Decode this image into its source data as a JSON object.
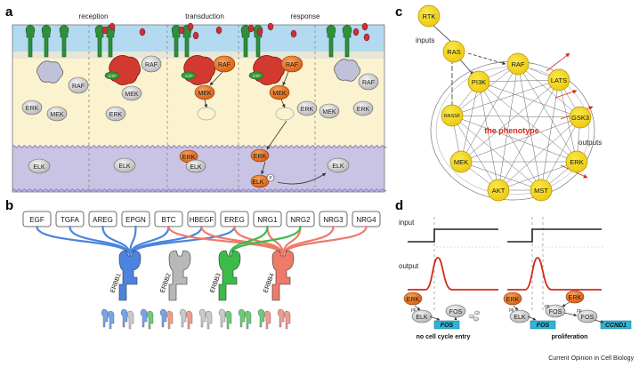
{
  "panels": {
    "a": "a",
    "b": "b",
    "c": "c",
    "d": "d"
  },
  "panel_a": {
    "stages": [
      "reception",
      "transduction",
      "response"
    ],
    "proteins": {
      "raf": "RAF",
      "mek": "MEK",
      "erk": "ERK",
      "elk": "ELK",
      "gtp": "GTP",
      "p": "P"
    }
  },
  "panel_b": {
    "ligands": [
      "EGF",
      "TGFA",
      "AREG",
      "EPGN",
      "BTC",
      "HBEGF",
      "EREG",
      "NRG1",
      "NRG2",
      "NRG3",
      "NRG4"
    ],
    "receptors": [
      "ERBB1",
      "ERBB2",
      "ERBB3",
      "ERBB4"
    ]
  },
  "panel_c": {
    "nodes": [
      "RTK",
      "RAS",
      "PI3K",
      "RAF",
      "LATS",
      "RASSF",
      "GSK3",
      "MEK",
      "ERK",
      "AKT",
      "MST"
    ],
    "inputs_label": "inputs",
    "outputs_label": "outputs",
    "center_label": "the phenotype"
  },
  "panel_d": {
    "input_label": "input",
    "output_label": "output",
    "erk": "ERK",
    "elk": "ELK",
    "fos": "FOS",
    "ccnd1": "CCND1",
    "pp": "pp",
    "left_caption": "no cell cycle entry",
    "right_caption": "proliferation"
  },
  "credit": "Current Opinion in Cell Biology",
  "colors": {
    "membrane": "#b3daf0",
    "cytoplasm": "#fbf3cf",
    "nucleus": "#c9c4e4",
    "orange": "#e8701e",
    "node": "#f3d81a",
    "erbb1": "#4a84e0",
    "erbb2": "#b8b8b8",
    "erbb3": "#3cbb4a",
    "erbb4": "#ee7a6a",
    "fos": "#2bb5da",
    "pulse": "#d42a1a"
  }
}
